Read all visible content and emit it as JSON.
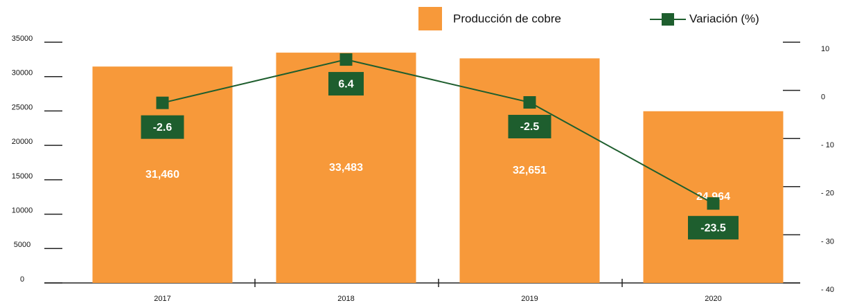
{
  "chart_data": {
    "type": "bar_line",
    "categories": [
      "2017",
      "2018",
      "2019",
      "2020"
    ],
    "series": [
      {
        "name": "Producción de cobre",
        "type": "bar",
        "color": "#f7993a",
        "values": [
          31460,
          33483,
          32651,
          24964
        ],
        "value_labels": [
          "31,460",
          "33,483",
          "32,651",
          "24,964"
        ]
      },
      {
        "name": "Variación (%)",
        "type": "line",
        "axis": "y2",
        "color": "#1e5e2e",
        "values": [
          -2.6,
          6.4,
          -2.5,
          -23.5
        ]
      }
    ],
    "ylim": [
      0,
      35000
    ],
    "yticks": [
      0,
      5000,
      10000,
      15000,
      20000,
      25000,
      30000,
      35000
    ],
    "y2lim": [
      -40,
      10
    ],
    "y2ticks": [
      {
        "value": -40,
        "label": "- 40"
      },
      {
        "value": -30,
        "label": "- 30"
      },
      {
        "value": -20,
        "label": "- 20"
      },
      {
        "value": -10,
        "label": "- 10"
      },
      0,
      10
    ],
    "legend": "top"
  }
}
